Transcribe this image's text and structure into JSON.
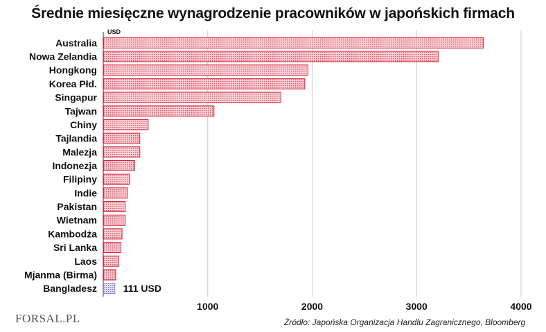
{
  "chart_data": {
    "type": "bar",
    "orientation": "horizontal",
    "title": "Średnie miesięczne wynagrodzenie pracowników w japońskich firmach",
    "unit_label": "USD",
    "categories": [
      "Australia",
      "Nowa Zelandia",
      "Hongkong",
      "Korea Płd.",
      "Singapur",
      "Tajwan",
      "Chiny",
      "Tajlandia",
      "Malezja",
      "Indonezja",
      "Filipiny",
      "Indie",
      "Pakistan",
      "Wietnam",
      "Kambodża",
      "Sri Lanka",
      "Laos",
      "Mjanma (Birma)",
      "Bangladesz"
    ],
    "values": [
      3640,
      3210,
      1960,
      1930,
      1700,
      1060,
      430,
      350,
      350,
      300,
      250,
      230,
      210,
      210,
      180,
      170,
      150,
      120,
      111
    ],
    "xlim": [
      0,
      4000
    ],
    "xticks": [
      1000,
      2000,
      3000,
      4000
    ],
    "grid": true,
    "data_labels": [
      {
        "index": 18,
        "text": "111 USD"
      }
    ],
    "colors": {
      "bar": "#d9223a",
      "bar_fill": "#f3c4cb",
      "highlight_bar": "#8a86c8",
      "highlight_fill": "#dcdbf0",
      "grid": "#c9c9c9",
      "axis": "#333333"
    }
  },
  "footer": {
    "logo_text": "FORSAL.PL",
    "source": "Źródło: Japońska Organizacja Handlu Zagranicznego, Bloomberg"
  }
}
